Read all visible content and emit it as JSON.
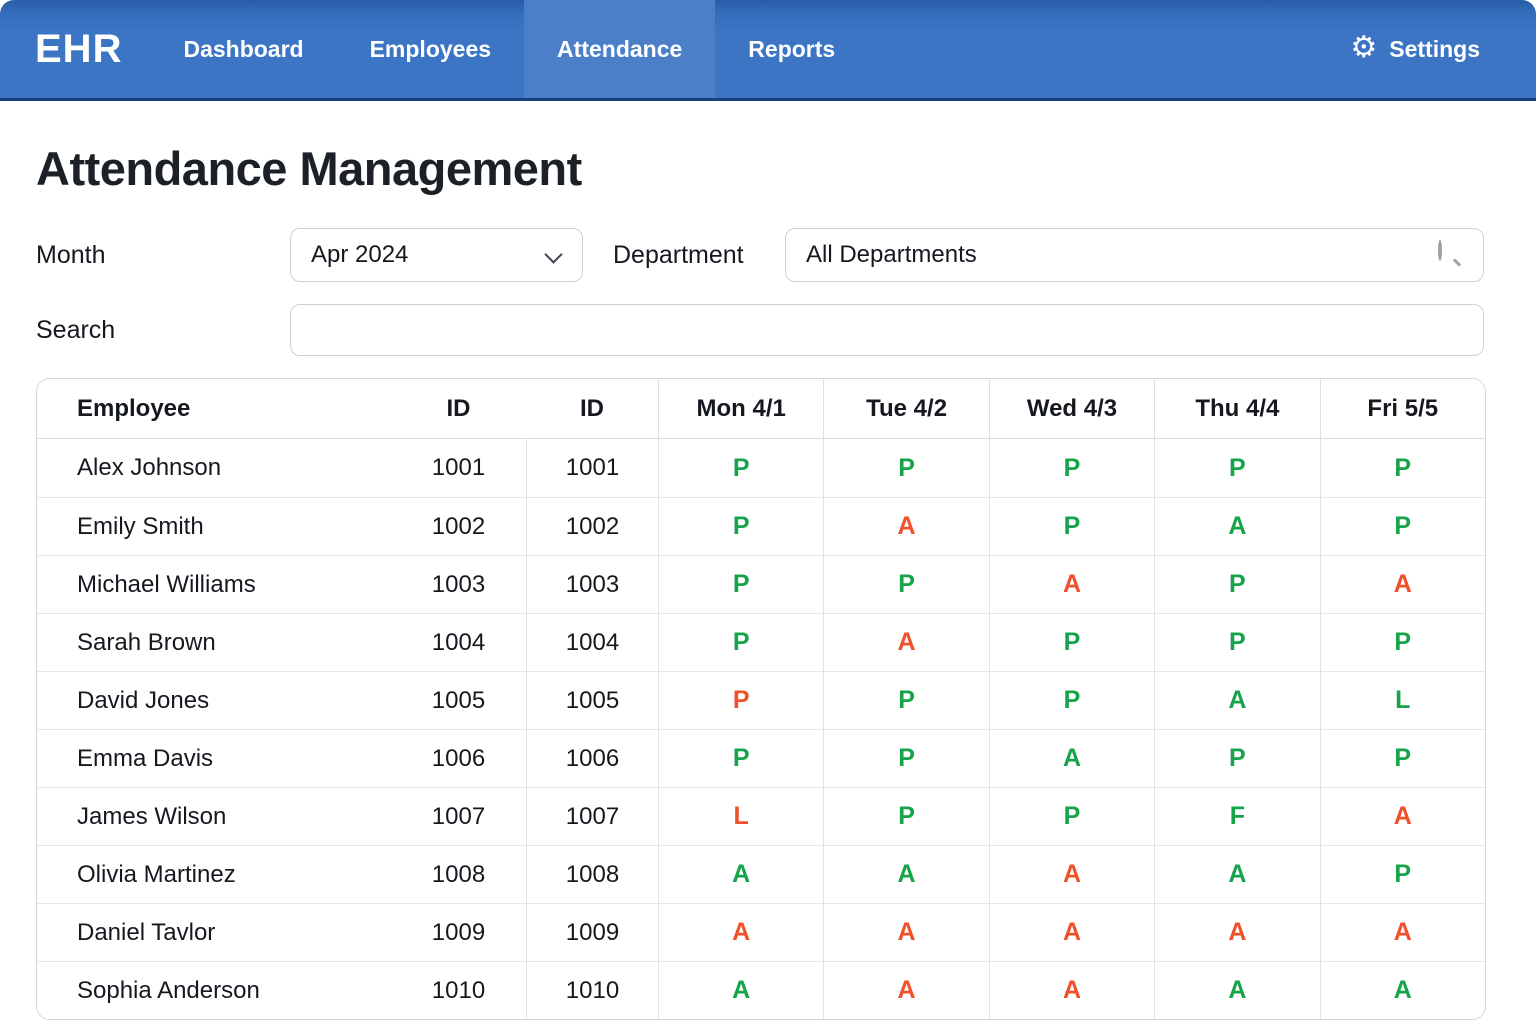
{
  "app": {
    "logo": "EHR",
    "nav_items": [
      {
        "label": "Dashboard",
        "active": false
      },
      {
        "label": "Employees",
        "active": false
      },
      {
        "label": "Attendance",
        "active": true
      },
      {
        "label": "Reports",
        "active": false
      }
    ],
    "settings": {
      "label": "Settings",
      "icon": "gear-icon"
    }
  },
  "page": {
    "title": "Attendance Management"
  },
  "filters": {
    "month": {
      "label": "Month",
      "value": "Apr 2024"
    },
    "department": {
      "label": "Department",
      "value": "All Departments",
      "icon": "search-icon"
    },
    "search": {
      "label": "Search",
      "value": ""
    }
  },
  "colors": {
    "green": "#16a34a",
    "red": "#f0502a",
    "nav_bg": "#3b75c4",
    "nav_active_bg": "#4b80c9"
  },
  "table": {
    "columns": [
      "Employee",
      "ID",
      "ID",
      "Mon 4/1",
      "Tue 4/2",
      "Wed 4/3",
      "Thu 4/4",
      "Fri 5/5"
    ],
    "rows": [
      {
        "name": "Alex Johnson",
        "id": "1001",
        "id2": "1001",
        "marks": [
          [
            "P",
            "green"
          ],
          [
            "P",
            "green"
          ],
          [
            "P",
            "green"
          ],
          [
            "P",
            "green"
          ],
          [
            "P",
            "green"
          ]
        ]
      },
      {
        "name": "Emily Smith",
        "id": "1002",
        "id2": "1002",
        "marks": [
          [
            "P",
            "green"
          ],
          [
            "A",
            "red"
          ],
          [
            "P",
            "green"
          ],
          [
            "A",
            "green"
          ],
          [
            "P",
            "green"
          ]
        ]
      },
      {
        "name": "Michael Williams",
        "id": "1003",
        "id2": "1003",
        "marks": [
          [
            "P",
            "green"
          ],
          [
            "P",
            "green"
          ],
          [
            "A",
            "red"
          ],
          [
            "P",
            "green"
          ],
          [
            "A",
            "red"
          ]
        ]
      },
      {
        "name": "Sarah Brown",
        "id": "1004",
        "id2": "1004",
        "marks": [
          [
            "P",
            "green"
          ],
          [
            "A",
            "red"
          ],
          [
            "P",
            "green"
          ],
          [
            "P",
            "green"
          ],
          [
            "P",
            "green"
          ]
        ]
      },
      {
        "name": "David Jones",
        "id": "1005",
        "id2": "1005",
        "marks": [
          [
            "P",
            "red"
          ],
          [
            "P",
            "green"
          ],
          [
            "P",
            "green"
          ],
          [
            "A",
            "green"
          ],
          [
            "L",
            "green"
          ]
        ]
      },
      {
        "name": "Emma Davis",
        "id": "1006",
        "id2": "1006",
        "marks": [
          [
            "P",
            "green"
          ],
          [
            "P",
            "green"
          ],
          [
            "A",
            "green"
          ],
          [
            "P",
            "green"
          ],
          [
            "P",
            "green"
          ]
        ]
      },
      {
        "name": "James Wilson",
        "id": "1007",
        "id2": "1007",
        "marks": [
          [
            "L",
            "red"
          ],
          [
            "P",
            "green"
          ],
          [
            "P",
            "green"
          ],
          [
            "F",
            "green"
          ],
          [
            "A",
            "red"
          ]
        ]
      },
      {
        "name": "Olivia Martinez",
        "id": "1008",
        "id2": "1008",
        "marks": [
          [
            "A",
            "green"
          ],
          [
            "A",
            "green"
          ],
          [
            "A",
            "red"
          ],
          [
            "A",
            "green"
          ],
          [
            "P",
            "green"
          ]
        ]
      },
      {
        "name": "Daniel Tavlor",
        "id": "1009",
        "id2": "1009",
        "marks": [
          [
            "A",
            "red"
          ],
          [
            "A",
            "red"
          ],
          [
            "A",
            "red"
          ],
          [
            "A",
            "red"
          ],
          [
            "A",
            "red"
          ]
        ]
      },
      {
        "name": "Sophia Anderson",
        "id": "1010",
        "id2": "1010",
        "marks": [
          [
            "A",
            "green"
          ],
          [
            "A",
            "red"
          ],
          [
            "A",
            "red"
          ],
          [
            "A",
            "green"
          ],
          [
            "A",
            "green"
          ]
        ]
      }
    ]
  }
}
